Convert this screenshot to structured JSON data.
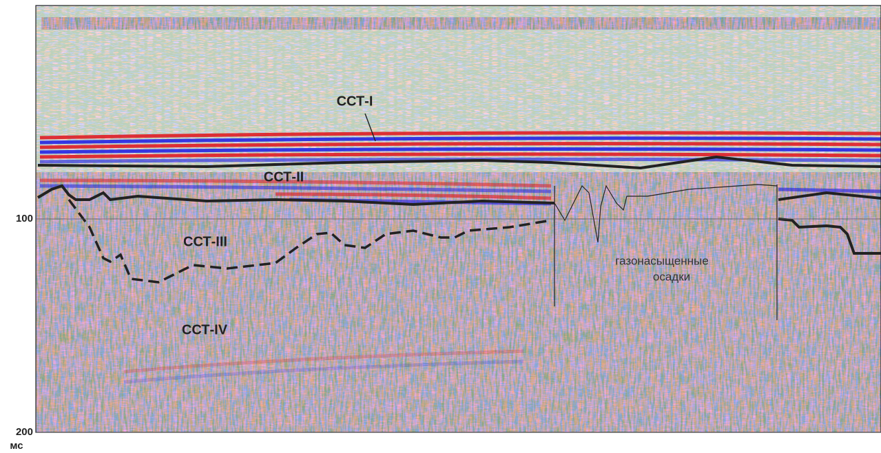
{
  "chart_data": {
    "type": "seismic-section",
    "y_axis_label": "мс",
    "ylim": [
      0,
      200
    ],
    "yticks": [
      100,
      200
    ],
    "grid": true,
    "annotations": [
      "ССТ-I",
      "ССТ-II",
      "ССТ-III",
      "ССТ-IV",
      "газонасыщенные",
      "осадки"
    ]
  }
}
